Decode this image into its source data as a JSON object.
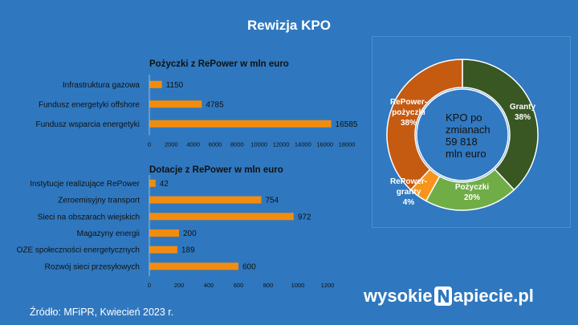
{
  "title": "Rewizja KPO",
  "source": "Źródło: MFiPR, Kwiecień 2023 r.",
  "logo": {
    "before": "wysokie",
    "after": "apiecie.pl",
    "icon": "lightning-n-icon"
  },
  "colors": {
    "background": "#2f78bf",
    "bar": "#f28c0f",
    "granty": "#385723",
    "pozyczki": "#70ad47",
    "repower_granty": "#f7941d",
    "repower_pozyczki": "#c55a11",
    "donut_hole": "#2f78bf"
  },
  "chart_data": [
    {
      "type": "bar",
      "orientation": "horizontal",
      "title": "Pożyczki z RePower w mln euro",
      "categories": [
        "Infrastruktura gazowa",
        "Fundusz energetyki offshore",
        "Fundusz wsparcia energetyki"
      ],
      "values": [
        1150,
        4785,
        16585
      ],
      "value_labels": [
        "1150",
        "4785",
        "16585"
      ],
      "xlim": [
        0,
        18000
      ],
      "ticks": [
        "0",
        "2000",
        "4000",
        "6000",
        "8000",
        "10000",
        "12000",
        "14000",
        "16000",
        "18000"
      ],
      "grid": false
    },
    {
      "type": "bar",
      "orientation": "horizontal",
      "title": "Dotacje z RePower w mln euro",
      "categories": [
        "Instytucje realizujące RePower",
        "Zeroemisyjny transport",
        "Sieci na obszarach wiejskich",
        "Magazyny energii",
        "OZE społeczności energetycznych",
        "Rozwój sieci przesyłowych"
      ],
      "values": [
        42,
        754,
        972,
        200,
        189,
        600
      ],
      "value_labels": [
        "42",
        "754",
        "972",
        "200",
        "189",
        "600"
      ],
      "xlim": [
        0,
        1200
      ],
      "ticks": [
        "0",
        "200",
        "400",
        "600",
        "800",
        "1000",
        "1200"
      ],
      "grid": false
    },
    {
      "type": "pie",
      "variant": "donut",
      "center_text": [
        "KPO po",
        "zmianach",
        "59 818",
        "mln euro"
      ],
      "slices": [
        {
          "label_lines": [
            "Granty",
            "38%"
          ],
          "value": 38
        },
        {
          "label_lines": [
            "Pożyczki",
            "20%"
          ],
          "value": 20
        },
        {
          "label_lines": [
            "RePower-",
            "granty",
            "4%"
          ],
          "value": 4
        },
        {
          "label_lines": [
            "RePower-",
            "pożyczki",
            "38%"
          ],
          "value": 38
        }
      ]
    }
  ]
}
